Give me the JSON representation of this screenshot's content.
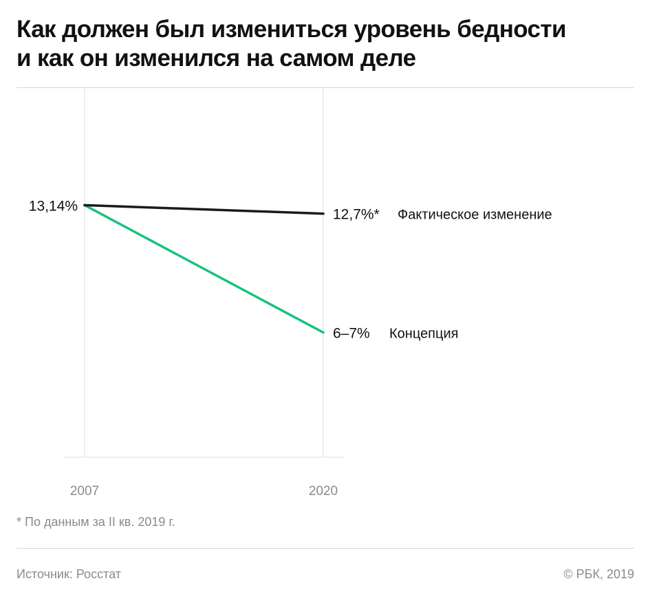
{
  "title_line1": "Как должен был измениться уровень бедности",
  "title_line2": "и как он изменился на самом деле",
  "chart_data": {
    "type": "line",
    "x": [
      "2007",
      "2020"
    ],
    "ylim": [
      0,
      25
    ],
    "grid": true,
    "start_label": "13,14%",
    "series": [
      {
        "name": "Фактическое изменение",
        "values": [
          13.14,
          12.7
        ],
        "end_label": "12,7%*",
        "color": "#1a1a1a"
      },
      {
        "name": "Концепция",
        "values": [
          13.14,
          6.5
        ],
        "end_label": "6–7%",
        "color": "#19c37d"
      }
    ]
  },
  "footnote": "* По данным за II кв. 2019 г.",
  "source": "Источник: Росстат",
  "copyright": "© РБК, 2019"
}
